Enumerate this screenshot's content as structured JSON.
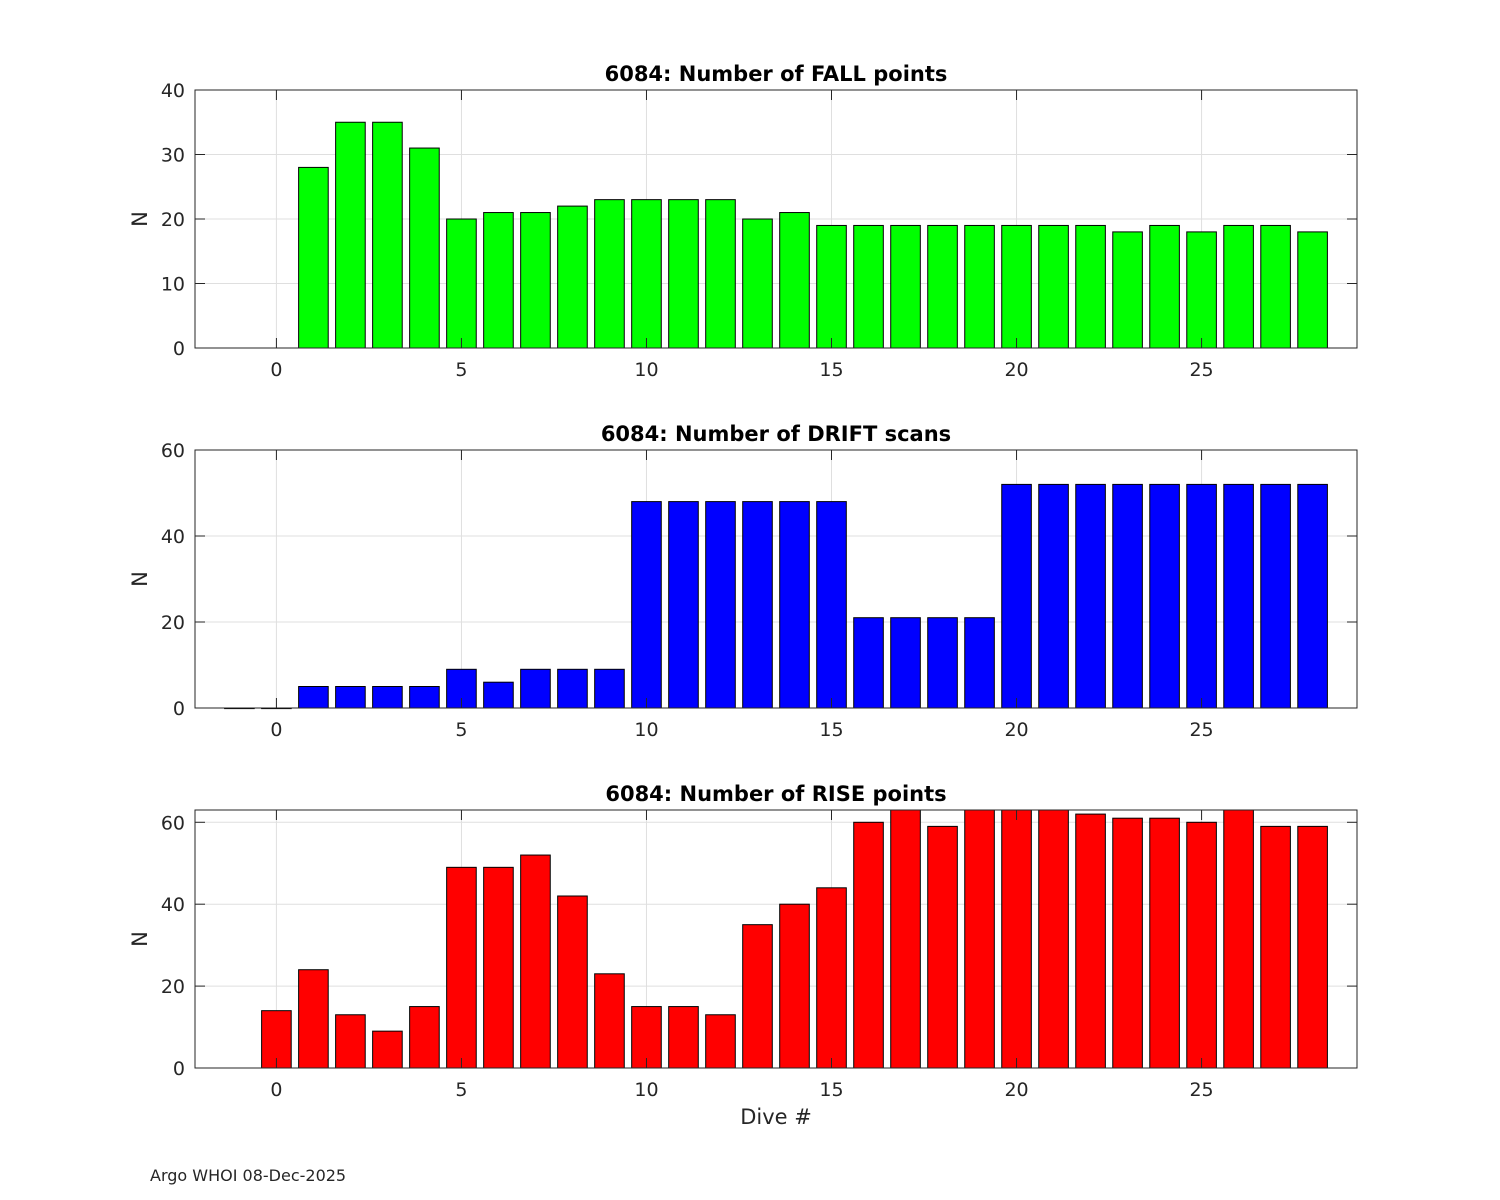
{
  "chart_data": [
    {
      "type": "bar",
      "title": "6084: Number of FALL points",
      "xlabel": "",
      "ylabel": "N",
      "color": "#00ff00",
      "xlim": [
        -2.2,
        29.2
      ],
      "ylim": [
        0,
        40
      ],
      "yticks": [
        0,
        10,
        20,
        30,
        40
      ],
      "xticks": [
        0,
        5,
        10,
        15,
        20,
        25
      ],
      "grid": true,
      "x": [
        1,
        2,
        3,
        4,
        5,
        6,
        7,
        8,
        9,
        10,
        11,
        12,
        13,
        14,
        15,
        16,
        17,
        18,
        19,
        20,
        21,
        22,
        23,
        24,
        25,
        26,
        27,
        28
      ],
      "values": [
        28,
        35,
        35,
        31,
        20,
        21,
        21,
        22,
        23,
        23,
        23,
        23,
        20,
        21,
        19,
        19,
        19,
        19,
        19,
        19,
        19,
        19,
        18,
        19,
        18,
        19,
        19,
        18
      ]
    },
    {
      "type": "bar",
      "title": "6084: Number of DRIFT scans",
      "xlabel": "",
      "ylabel": "N",
      "color": "#0000ff",
      "xlim": [
        -2.2,
        29.2
      ],
      "ylim": [
        0,
        60
      ],
      "yticks": [
        0,
        20,
        40,
        60
      ],
      "xticks": [
        0,
        5,
        10,
        15,
        20,
        25
      ],
      "grid": true,
      "x": [
        -1,
        0,
        1,
        2,
        3,
        4,
        5,
        6,
        7,
        8,
        9,
        10,
        11,
        12,
        13,
        14,
        15,
        16,
        17,
        18,
        19,
        20,
        21,
        22,
        23,
        24,
        25,
        26,
        27,
        28
      ],
      "values": [
        0,
        0,
        5,
        5,
        5,
        5,
        9,
        6,
        9,
        9,
        9,
        48,
        48,
        48,
        48,
        48,
        48,
        21,
        21,
        21,
        21,
        52,
        52,
        52,
        52,
        52,
        52,
        52,
        52,
        52
      ]
    },
    {
      "type": "bar",
      "title": "6084: Number of RISE points",
      "xlabel": "Dive #",
      "ylabel": "N",
      "color": "#ff0000",
      "xlim": [
        -2.2,
        29.2
      ],
      "ylim": [
        0,
        63
      ],
      "yticks": [
        0,
        20,
        40,
        60
      ],
      "xticks": [
        0,
        5,
        10,
        15,
        20,
        25
      ],
      "grid": true,
      "x": [
        0,
        1,
        2,
        3,
        4,
        5,
        6,
        7,
        8,
        9,
        10,
        11,
        12,
        13,
        14,
        15,
        16,
        17,
        18,
        19,
        20,
        21,
        22,
        23,
        24,
        25,
        26,
        27,
        28
      ],
      "values": [
        14,
        24,
        13,
        9,
        15,
        49,
        49,
        52,
        42,
        23,
        15,
        15,
        13,
        35,
        40,
        44,
        60,
        63,
        59,
        63,
        63,
        63,
        62,
        61,
        61,
        60,
        63,
        59,
        59
      ]
    }
  ],
  "footer": {
    "text": "Argo WHOI 08-Dec-2025"
  }
}
